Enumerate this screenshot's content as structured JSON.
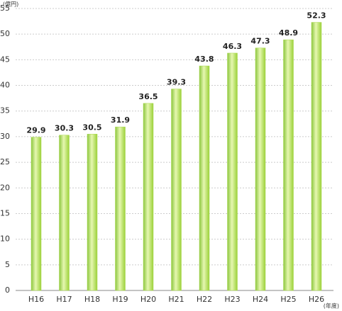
{
  "chart_data": {
    "type": "bar",
    "ylabel": "(億円)",
    "xlabel": "(年度)",
    "categories": [
      "H16",
      "H17",
      "H18",
      "H19",
      "H20",
      "H21",
      "H22",
      "H23",
      "H24",
      "H25",
      "H26"
    ],
    "values": [
      29.9,
      30.3,
      30.5,
      31.9,
      36.5,
      39.3,
      43.8,
      46.3,
      47.3,
      48.9,
      52.3
    ],
    "color": "#a8d84a",
    "ylim": [
      0,
      55
    ],
    "yticks": [
      0,
      5,
      10,
      15,
      20,
      25,
      30,
      35,
      40,
      45,
      50,
      55
    ],
    "grid": true
  }
}
